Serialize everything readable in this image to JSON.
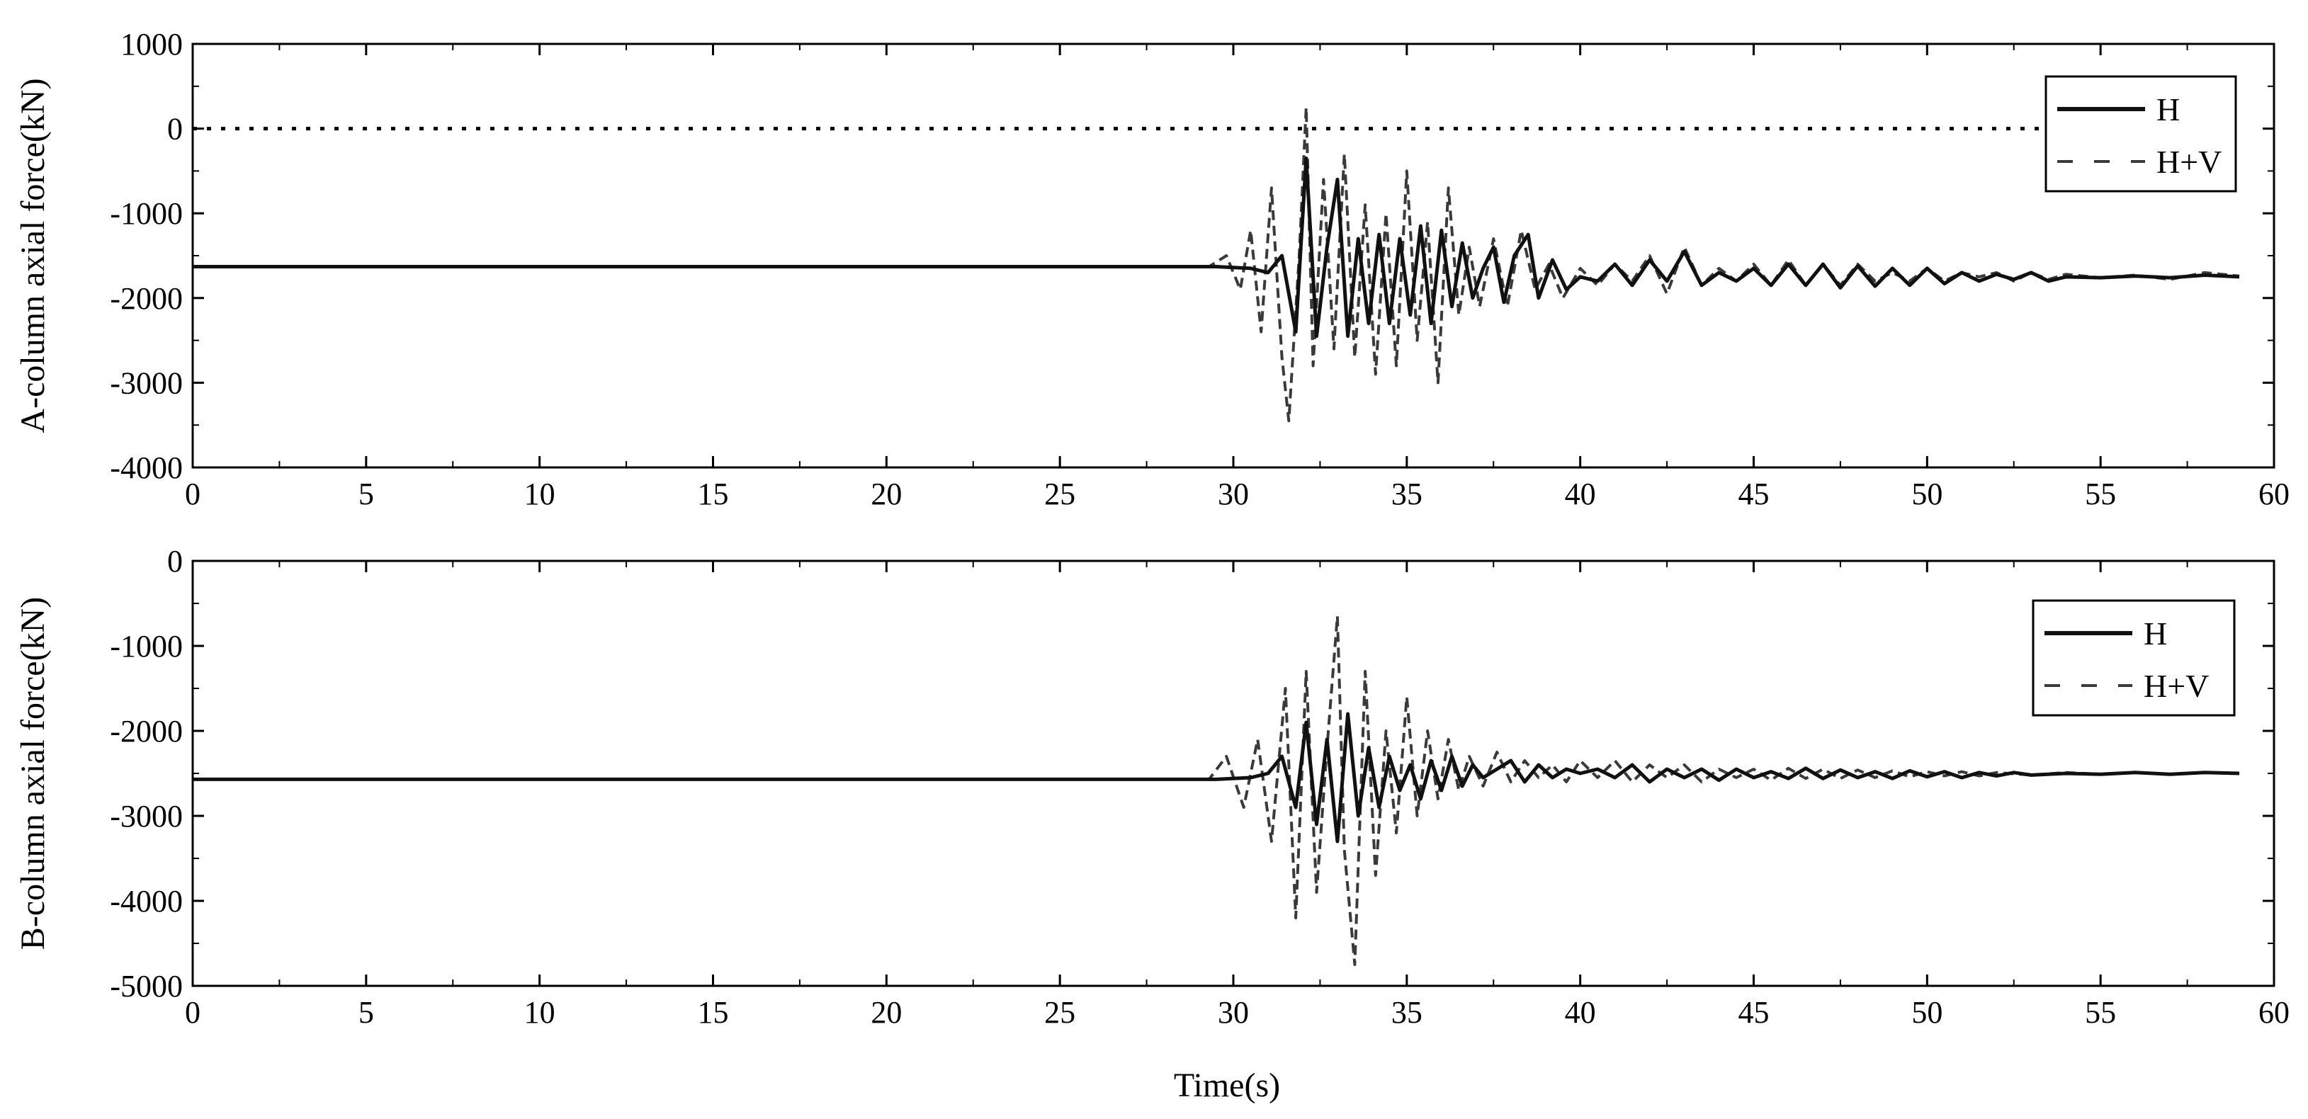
{
  "chart_data": [
    {
      "type": "line",
      "ylabel": "A-column axial force(kN)",
      "xlabel": "",
      "xlim": [
        0,
        60
      ],
      "ylim": [
        -4000,
        1000
      ],
      "xticks": [
        0,
        5,
        10,
        15,
        20,
        25,
        30,
        35,
        40,
        45,
        50,
        55,
        60
      ],
      "xtick_labels": [
        "0",
        "5",
        "10",
        "15",
        "20",
        "25",
        "30",
        "35",
        "40",
        "45",
        "50",
        "55",
        "60"
      ],
      "yticks": [
        1000,
        0,
        -1000,
        -2000,
        -3000,
        -4000
      ],
      "ytick_labels": [
        "1000",
        "0",
        "-1000",
        "-2000",
        "-3000",
        "-4000"
      ],
      "legend_position": "top-right",
      "reference_line": {
        "y": 0,
        "x_range": [
          0,
          53.5
        ],
        "style": "dotted"
      },
      "series": [
        {
          "name": "H",
          "style": "solid",
          "x": [
            0,
            29.5,
            30.5,
            31.0,
            31.4,
            31.8,
            32.1,
            32.4,
            32.7,
            33.0,
            33.3,
            33.6,
            33.9,
            34.2,
            34.5,
            34.8,
            35.1,
            35.4,
            35.7,
            36.0,
            36.3,
            36.6,
            36.9,
            37.2,
            37.5,
            37.8,
            38.1,
            38.5,
            38.8,
            39.2,
            39.6,
            40.0,
            40.5,
            41.0,
            41.5,
            42.0,
            42.5,
            43.0,
            43.5,
            44.0,
            44.5,
            45.0,
            45.5,
            46.0,
            46.5,
            47.0,
            47.5,
            48.0,
            48.5,
            49.0,
            49.5,
            50.0,
            50.5,
            51.0,
            51.5,
            52.0,
            52.5,
            53.0,
            53.5,
            54.0,
            55.0,
            56.0,
            57.0,
            58.0,
            59.0
          ],
          "values": [
            -1630,
            -1630,
            -1650,
            -1700,
            -1500,
            -2400,
            -350,
            -2450,
            -1400,
            -600,
            -2450,
            -1300,
            -2300,
            -1250,
            -2300,
            -1300,
            -2200,
            -1150,
            -2300,
            -1200,
            -2100,
            -1350,
            -2000,
            -1650,
            -1400,
            -2050,
            -1500,
            -1250,
            -2000,
            -1550,
            -1900,
            -1750,
            -1800,
            -1600,
            -1850,
            -1550,
            -1800,
            -1450,
            -1850,
            -1700,
            -1800,
            -1650,
            -1850,
            -1600,
            -1850,
            -1600,
            -1880,
            -1620,
            -1860,
            -1650,
            -1850,
            -1650,
            -1830,
            -1700,
            -1800,
            -1720,
            -1780,
            -1700,
            -1800,
            -1750,
            -1760,
            -1740,
            -1760,
            -1730,
            -1750
          ]
        },
        {
          "name": "H+V",
          "style": "dashed",
          "x": [
            0,
            29.3,
            29.8,
            30.2,
            30.5,
            30.8,
            31.1,
            31.4,
            31.6,
            31.9,
            32.1,
            32.3,
            32.6,
            32.9,
            33.2,
            33.5,
            33.8,
            34.1,
            34.4,
            34.7,
            35.0,
            35.3,
            35.6,
            35.9,
            36.2,
            36.5,
            36.8,
            37.1,
            37.5,
            37.9,
            38.3,
            38.7,
            39.1,
            39.5,
            40.0,
            40.5,
            41.0,
            41.5,
            42.0,
            42.5,
            43.0,
            43.5,
            44.0,
            44.5,
            45.0,
            45.5,
            46.0,
            46.5,
            47.0,
            47.5,
            48.0,
            48.5,
            49.0,
            49.5,
            50.0,
            50.5,
            51.0,
            51.5,
            52.0,
            52.5,
            53.0,
            53.5,
            54.0,
            55.0,
            56.0,
            57.0,
            58.0,
            59.0
          ],
          "values": [
            -1630,
            -1630,
            -1500,
            -1900,
            -1200,
            -2400,
            -700,
            -2700,
            -3450,
            -1500,
            250,
            -2800,
            -600,
            -2600,
            -300,
            -2700,
            -900,
            -2900,
            -1000,
            -2800,
            -500,
            -2500,
            -1100,
            -3000,
            -700,
            -2200,
            -1400,
            -2100,
            -1300,
            -2100,
            -1200,
            -1900,
            -1600,
            -2000,
            -1650,
            -1850,
            -1600,
            -1800,
            -1500,
            -1950,
            -1400,
            -1850,
            -1650,
            -1800,
            -1600,
            -1850,
            -1550,
            -1850,
            -1600,
            -1850,
            -1600,
            -1800,
            -1700,
            -1800,
            -1650,
            -1800,
            -1700,
            -1750,
            -1700,
            -1800,
            -1700,
            -1780,
            -1720,
            -1760,
            -1730,
            -1780,
            -1700,
            -1740
          ]
        }
      ]
    },
    {
      "type": "line",
      "ylabel": "B-column axial force(kN)",
      "xlabel": "Time(s)",
      "xlim": [
        0,
        60
      ],
      "ylim": [
        -5000,
        0
      ],
      "xticks": [
        0,
        5,
        10,
        15,
        20,
        25,
        30,
        35,
        40,
        45,
        50,
        55,
        60
      ],
      "xtick_labels": [
        "0",
        "5",
        "10",
        "15",
        "20",
        "25",
        "30",
        "35",
        "40",
        "45",
        "50",
        "55",
        "60"
      ],
      "yticks": [
        0,
        -1000,
        -2000,
        -3000,
        -4000,
        -5000
      ],
      "ytick_labels": [
        "0",
        "-1000",
        "-2000",
        "-3000",
        "-4000",
        "-5000"
      ],
      "legend_position": "top-right",
      "series": [
        {
          "name": "H",
          "style": "solid",
          "x": [
            0,
            29.5,
            30.5,
            31.0,
            31.4,
            31.8,
            32.1,
            32.4,
            32.7,
            33.0,
            33.3,
            33.6,
            33.9,
            34.2,
            34.5,
            34.8,
            35.1,
            35.4,
            35.7,
            36.0,
            36.3,
            36.6,
            36.9,
            37.2,
            37.6,
            38.0,
            38.4,
            38.8,
            39.2,
            39.6,
            40.0,
            40.5,
            41.0,
            41.5,
            42.0,
            42.5,
            43.0,
            43.5,
            44.0,
            44.5,
            45.0,
            45.5,
            46.0,
            46.5,
            47.0,
            47.5,
            48.0,
            48.5,
            49.0,
            49.5,
            50.0,
            50.5,
            51.0,
            51.5,
            52.0,
            52.5,
            53.0,
            54.0,
            55.0,
            56.0,
            57.0,
            58.0,
            59.0
          ],
          "values": [
            -2570,
            -2570,
            -2550,
            -2500,
            -2300,
            -2900,
            -1900,
            -3100,
            -2100,
            -3300,
            -1800,
            -3000,
            -2200,
            -2900,
            -2300,
            -2700,
            -2400,
            -2800,
            -2350,
            -2700,
            -2300,
            -2650,
            -2400,
            -2550,
            -2450,
            -2350,
            -2600,
            -2400,
            -2550,
            -2450,
            -2500,
            -2450,
            -2550,
            -2400,
            -2600,
            -2450,
            -2550,
            -2450,
            -2580,
            -2450,
            -2550,
            -2480,
            -2560,
            -2440,
            -2560,
            -2460,
            -2550,
            -2480,
            -2560,
            -2470,
            -2540,
            -2480,
            -2550,
            -2490,
            -2530,
            -2490,
            -2520,
            -2500,
            -2510,
            -2490,
            -2510,
            -2490,
            -2500
          ]
        },
        {
          "name": "H+V",
          "style": "dashed",
          "x": [
            0,
            29.3,
            29.8,
            30.3,
            30.7,
            31.1,
            31.5,
            31.8,
            32.1,
            32.4,
            32.7,
            33.0,
            33.2,
            33.5,
            33.8,
            34.1,
            34.4,
            34.7,
            35.0,
            35.3,
            35.6,
            35.9,
            36.2,
            36.5,
            36.8,
            37.2,
            37.6,
            38.0,
            38.4,
            38.8,
            39.2,
            39.6,
            40.0,
            40.5,
            41.0,
            41.5,
            42.0,
            42.5,
            43.0,
            43.5,
            44.0,
            44.5,
            45.0,
            45.5,
            46.0,
            46.5,
            47.0,
            47.5,
            48.0,
            48.5,
            49.0,
            49.5,
            50.0,
            50.5,
            51.0,
            51.5,
            52.0,
            53.0,
            54.0,
            55.0,
            56.0,
            57.0,
            58.0,
            59.0
          ],
          "values": [
            -2570,
            -2570,
            -2300,
            -2900,
            -2100,
            -3300,
            -1500,
            -4200,
            -1300,
            -3900,
            -2200,
            -650,
            -3400,
            -4750,
            -1300,
            -3700,
            -2000,
            -3200,
            -1600,
            -3000,
            -2000,
            -2800,
            -2100,
            -2700,
            -2300,
            -2650,
            -2250,
            -2600,
            -2350,
            -2550,
            -2400,
            -2600,
            -2350,
            -2550,
            -2350,
            -2600,
            -2400,
            -2550,
            -2400,
            -2600,
            -2450,
            -2550,
            -2450,
            -2580,
            -2440,
            -2560,
            -2450,
            -2560,
            -2460,
            -2550,
            -2470,
            -2540,
            -2480,
            -2530,
            -2480,
            -2530,
            -2490,
            -2520,
            -2490,
            -2510,
            -2490,
            -2510,
            -2490,
            -2500
          ]
        }
      ]
    }
  ]
}
